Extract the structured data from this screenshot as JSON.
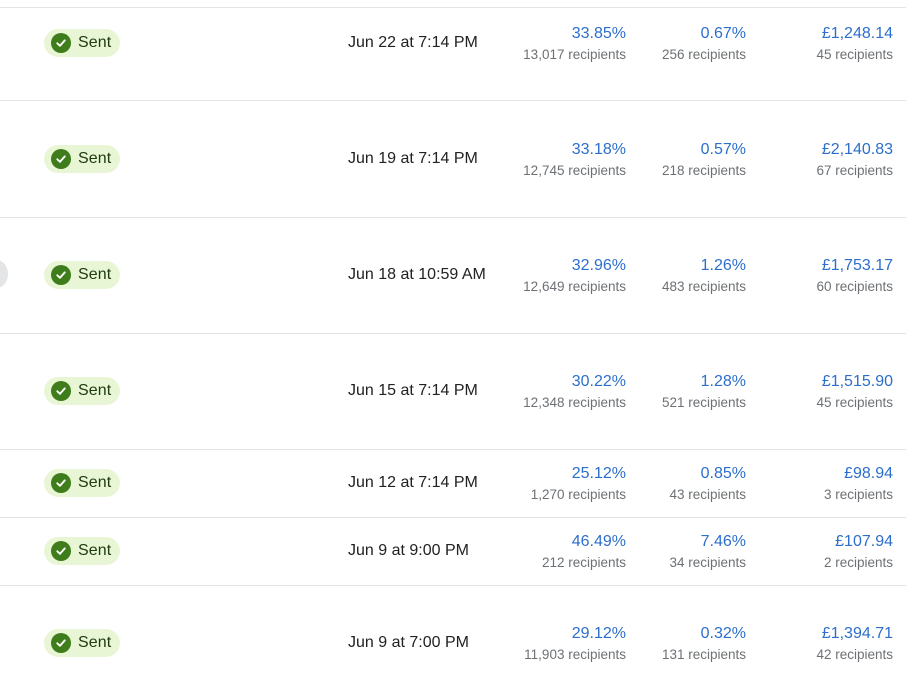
{
  "campaigns": [
    {
      "status": "Sent",
      "date": "Jun 22 at 7:14 PM",
      "open_rate": "33.85%",
      "open_recipients": "13,017 recipients",
      "click_rate": "0.67%",
      "click_recipients": "256 recipients",
      "revenue": "£1,248.14",
      "revenue_recipients": "45 recipients"
    },
    {
      "status": "Sent",
      "date": "Jun 19 at 7:14 PM",
      "open_rate": "33.18%",
      "open_recipients": "12,745 recipients",
      "click_rate": "0.57%",
      "click_recipients": "218 recipients",
      "revenue": "£2,140.83",
      "revenue_recipients": "67 recipients"
    },
    {
      "status": "Sent",
      "date": "Jun 18 at 10:59 AM",
      "open_rate": "32.96%",
      "open_recipients": "12,649 recipients",
      "click_rate": "1.26%",
      "click_recipients": "483 recipients",
      "revenue": "£1,753.17",
      "revenue_recipients": "60 recipients"
    },
    {
      "status": "Sent",
      "date": "Jun 15 at 7:14 PM",
      "open_rate": "30.22%",
      "open_recipients": "12,348 recipients",
      "click_rate": "1.28%",
      "click_recipients": "521 recipients",
      "revenue": "£1,515.90",
      "revenue_recipients": "45 recipients"
    },
    {
      "status": "Sent",
      "date": "Jun 12 at 7:14 PM",
      "open_rate": "25.12%",
      "open_recipients": "1,270 recipients",
      "click_rate": "0.85%",
      "click_recipients": "43 recipients",
      "revenue": "£98.94",
      "revenue_recipients": "3 recipients"
    },
    {
      "status": "Sent",
      "date": "Jun 9 at 9:00 PM",
      "open_rate": "46.49%",
      "open_recipients": "212 recipients",
      "click_rate": "7.46%",
      "click_recipients": "34 recipients",
      "revenue": "£107.94",
      "revenue_recipients": "2 recipients"
    },
    {
      "status": "Sent",
      "date": "Jun 9 at 7:00 PM",
      "open_rate": "29.12%",
      "open_recipients": "11,903 recipients",
      "click_rate": "0.32%",
      "click_recipients": "131 recipients",
      "revenue": "£1,394.71",
      "revenue_recipients": "42 recipients"
    }
  ],
  "icons": {
    "status": "check-circle-icon"
  },
  "colors": {
    "badge_background": "#e8f6d6",
    "badge_icon": "#3e7c1c",
    "link_blue": "#2c6ecb",
    "muted_text": "#6d7175"
  }
}
